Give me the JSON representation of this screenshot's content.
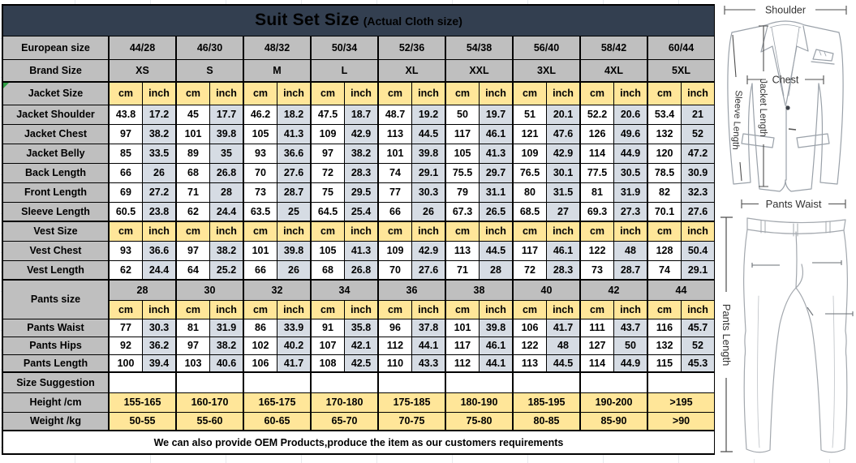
{
  "title": {
    "main": "Suit Set Size",
    "sub": "(Actual Cloth size)"
  },
  "units": {
    "cm": "cm",
    "inch": "inch"
  },
  "european": {
    "label": "European size",
    "values": [
      "44/28",
      "46/30",
      "48/32",
      "50/34",
      "52/36",
      "54/38",
      "56/40",
      "58/42",
      "60/44"
    ]
  },
  "brand": {
    "label": "Brand Size",
    "values": [
      "XS",
      "S",
      "M",
      "L",
      "XL",
      "XXL",
      "3XL",
      "4XL",
      "5XL"
    ]
  },
  "jacket": {
    "label": "Jacket Size",
    "rows": [
      {
        "label": "Jacket Shoulder",
        "cm": [
          "43.8",
          "45",
          "46.2",
          "47.5",
          "48.7",
          "50",
          "51",
          "52.2",
          "53.4"
        ],
        "inch": [
          "17.2",
          "17.7",
          "18.2",
          "18.7",
          "19.2",
          "19.7",
          "20.1",
          "20.6",
          "21"
        ]
      },
      {
        "label": "Jacket Chest",
        "cm": [
          "97",
          "101",
          "105",
          "109",
          "113",
          "117",
          "121",
          "126",
          "132"
        ],
        "inch": [
          "38.2",
          "39.8",
          "41.3",
          "42.9",
          "44.5",
          "46.1",
          "47.6",
          "49.6",
          "52"
        ]
      },
      {
        "label": "Jacket Belly",
        "cm": [
          "85",
          "89",
          "93",
          "97",
          "101",
          "105",
          "109",
          "114",
          "120"
        ],
        "inch": [
          "33.5",
          "35",
          "36.6",
          "38.2",
          "39.8",
          "41.3",
          "42.9",
          "44.9",
          "47.2"
        ]
      },
      {
        "label": "Back Length",
        "cm": [
          "66",
          "68",
          "70",
          "72",
          "74",
          "75.5",
          "76.5",
          "77.5",
          "78.5"
        ],
        "inch": [
          "26",
          "26.8",
          "27.6",
          "28.3",
          "29.1",
          "29.7",
          "30.1",
          "30.5",
          "30.9"
        ]
      },
      {
        "label": "Front Length",
        "cm": [
          "69",
          "71",
          "73",
          "75",
          "77",
          "79",
          "80",
          "81",
          "82"
        ],
        "inch": [
          "27.2",
          "28",
          "28.7",
          "29.5",
          "30.3",
          "31.1",
          "31.5",
          "31.9",
          "32.3"
        ]
      },
      {
        "label": "Sleeve Length",
        "cm": [
          "60.5",
          "62",
          "63.5",
          "64.5",
          "66",
          "67.3",
          "68.5",
          "69.3",
          "70.1"
        ],
        "inch": [
          "23.8",
          "24.4",
          "25",
          "25.4",
          "26",
          "26.5",
          "27",
          "27.3",
          "27.6"
        ]
      }
    ]
  },
  "vest": {
    "label": "Vest Size",
    "rows": [
      {
        "label": "Vest Chest",
        "cm": [
          "93",
          "97",
          "101",
          "105",
          "109",
          "113",
          "117",
          "122",
          "128"
        ],
        "inch": [
          "36.6",
          "38.2",
          "39.8",
          "41.3",
          "42.9",
          "44.5",
          "46.1",
          "48",
          "50.4"
        ]
      },
      {
        "label": "Vest Length",
        "cm": [
          "62",
          "64",
          "66",
          "68",
          "70",
          "71",
          "72",
          "73",
          "74"
        ],
        "inch": [
          "24.4",
          "25.2",
          "26",
          "26.8",
          "27.6",
          "28",
          "28.3",
          "28.7",
          "29.1"
        ]
      }
    ]
  },
  "pants": {
    "label": "Pants size",
    "sizes": [
      "28",
      "30",
      "32",
      "34",
      "36",
      "38",
      "40",
      "42",
      "44"
    ],
    "rows": [
      {
        "label": "Pants Waist",
        "cm": [
          "77",
          "81",
          "86",
          "91",
          "96",
          "101",
          "106",
          "111",
          "116"
        ],
        "inch": [
          "30.3",
          "31.9",
          "33.9",
          "35.8",
          "37.8",
          "39.8",
          "41.7",
          "43.7",
          "45.7"
        ]
      },
      {
        "label": "Pants Hips",
        "cm": [
          "92",
          "97",
          "102",
          "107",
          "112",
          "117",
          "122",
          "127",
          "132"
        ],
        "inch": [
          "36.2",
          "38.2",
          "40.2",
          "42.1",
          "44.1",
          "46.1",
          "48",
          "50",
          "52"
        ]
      },
      {
        "label": "Pants Length",
        "cm": [
          "100",
          "103",
          "106",
          "108",
          "110",
          "112",
          "113",
          "114",
          "115"
        ],
        "inch": [
          "39.4",
          "40.6",
          "41.7",
          "42.5",
          "43.3",
          "44.1",
          "44.5",
          "44.9",
          "45.3"
        ]
      }
    ]
  },
  "suggestion": {
    "label": "Size Suggestion",
    "rows": [
      {
        "label": "Height /cm",
        "values": [
          "155-165",
          "160-170",
          "165-175",
          "170-180",
          "175-185",
          "180-190",
          "185-195",
          "190-200",
          ">195"
        ]
      },
      {
        "label": "Weight /kg",
        "values": [
          "50-55",
          "55-60",
          "60-65",
          "65-70",
          "70-75",
          "75-80",
          "80-85",
          "85-90",
          ">90"
        ]
      }
    ]
  },
  "footer": "We can also provide OEM Products,produce the item as our customers requirements",
  "diagram": {
    "shoulder": "Shoulder",
    "chest": "Chest",
    "jacket_length": "Jacket Length",
    "sleeve_length": "Sleeve Length",
    "pants_waist": "Pants Waist",
    "pants_length": "Pants Length"
  },
  "colors": {
    "title_bg": "#333F50",
    "label_gray": "#BFBFBF",
    "unit_yellow": "#FFE699",
    "inch_blue": "#D6DCE4"
  }
}
